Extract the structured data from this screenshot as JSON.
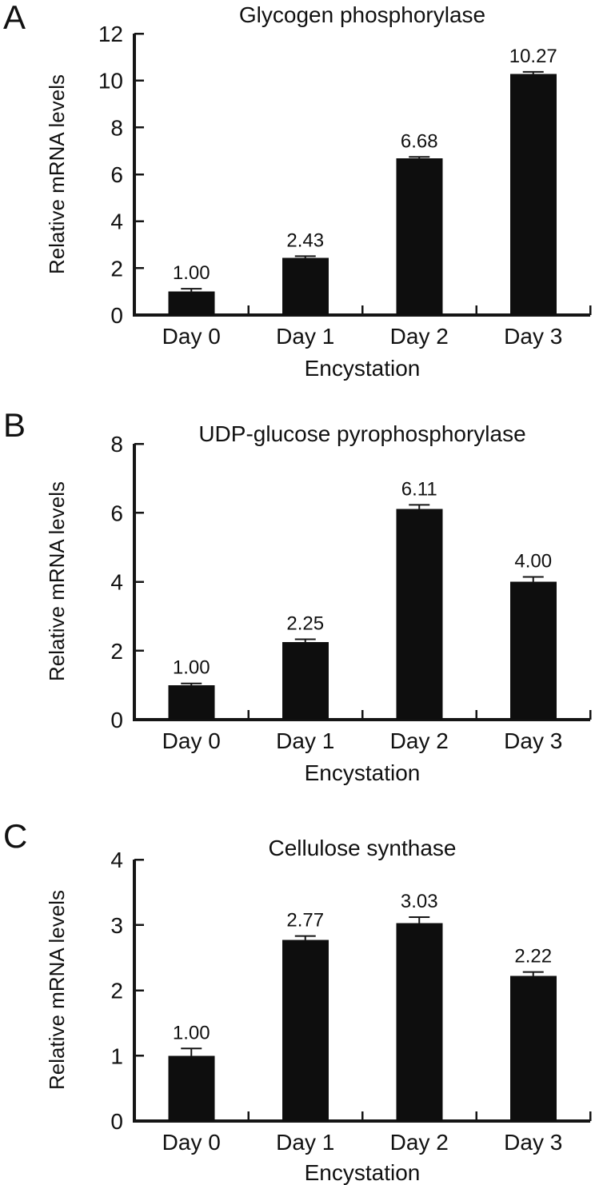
{
  "figure": {
    "background": "#ffffff",
    "bar_color": "#0e0e0e",
    "axis_color": "#151515",
    "text_color": "#111111"
  },
  "chart_data": [
    {
      "panel": "A",
      "type": "bar",
      "title": "Glycogen phosphorylase",
      "ylabel": "Relative mRNA levels",
      "xlabel": "Encystation",
      "categories": [
        "Day 0",
        "Day 1",
        "Day 2",
        "Day 3"
      ],
      "values": [
        1.0,
        2.43,
        6.68,
        10.27
      ],
      "value_labels": [
        "1.00",
        "2.43",
        "6.68",
        "10.27"
      ],
      "errors": [
        0.12,
        0.08,
        0.06,
        0.1
      ],
      "ylim": [
        0,
        12
      ],
      "yticks": [
        0,
        2,
        4,
        6,
        8,
        10,
        12
      ],
      "grid": false,
      "legend": null
    },
    {
      "panel": "B",
      "type": "bar",
      "title": "UDP-glucose pyrophosphorylase",
      "ylabel": "Relative mRNA levels",
      "xlabel": "Encystation",
      "categories": [
        "Day 0",
        "Day 1",
        "Day 2",
        "Day 3"
      ],
      "values": [
        1.0,
        2.25,
        6.11,
        4.0
      ],
      "value_labels": [
        "1.00",
        "2.25",
        "6.11",
        "4.00"
      ],
      "errors": [
        0.05,
        0.08,
        0.12,
        0.14
      ],
      "ylim": [
        0,
        8
      ],
      "yticks": [
        0,
        2,
        4,
        6,
        8
      ],
      "grid": false,
      "legend": null
    },
    {
      "panel": "C",
      "type": "bar",
      "title": "Cellulose synthase",
      "ylabel": "Relative mRNA levels",
      "xlabel": "Encystation",
      "categories": [
        "Day 0",
        "Day 1",
        "Day 2",
        "Day 3"
      ],
      "values": [
        1.0,
        2.77,
        3.03,
        2.22
      ],
      "value_labels": [
        "1.00",
        "2.77",
        "3.03",
        "2.22"
      ],
      "errors": [
        0.11,
        0.06,
        0.09,
        0.06
      ],
      "ylim": [
        0,
        4
      ],
      "yticks": [
        0,
        1,
        2,
        3,
        4
      ],
      "grid": false,
      "legend": null
    }
  ]
}
